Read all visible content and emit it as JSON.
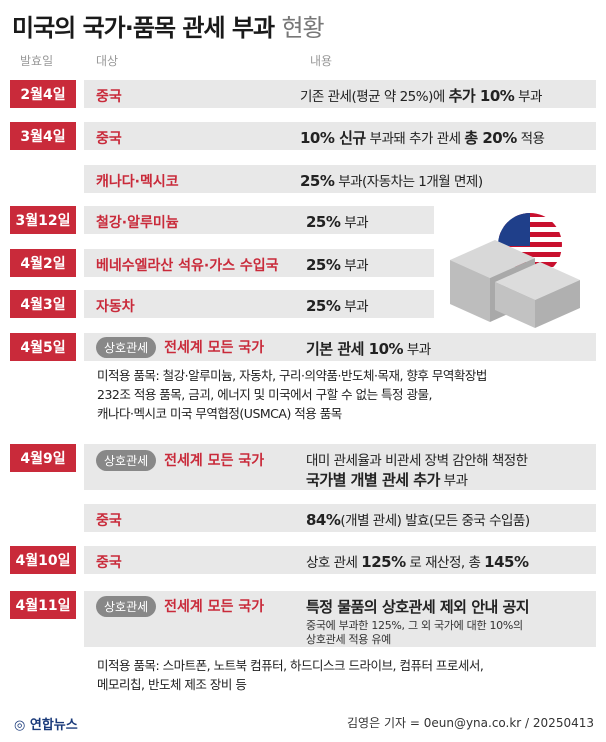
{
  "title": {
    "main": "미국의 국가·품목 관세 부과",
    "sub": "현황"
  },
  "headers": {
    "date": "발효일",
    "target": "대상",
    "content": "내용"
  },
  "rows": [
    {
      "date": "2월4일",
      "target": "중국",
      "content_pre": "기존 관세(평균 약 25%)에 ",
      "content_bold": "추가 10%",
      "content_post": " 부과"
    },
    {
      "date": "3월4일",
      "target": "중국",
      "content_bold": "10% 신규",
      "content_mid": " 부과돼 추가 관세 ",
      "content_bold2": "총 20%",
      "content_post": " 적용"
    },
    {
      "date": "",
      "target": "캐나다·멕시코",
      "content_bold": "25%",
      "content_post": " 부과(자동차는 1개월 면제)"
    },
    {
      "date": "3월12일",
      "target": "철강·알루미늄",
      "content_bold": "25%",
      "content_post": " 부과"
    },
    {
      "date": "4월2일",
      "target": "베네수엘라산 석유·가스 수입국",
      "content_bold": "25%",
      "content_post": " 부과"
    },
    {
      "date": "4월3일",
      "target": "자동차",
      "content_bold": "25%",
      "content_post": " 부과"
    },
    {
      "date": "4월5일",
      "pill": "상호관세",
      "target": "전세계 모든 국가",
      "content_bold": "기본 관세 10%",
      "content_post": " 부과",
      "detail": [
        "미적용 품목: 철강·알루미늄, 자동차, 구리·의약품·반도체·목재, 향후 무역확장법",
        "232조 적용 품목, 금괴, 에너지 및 미국에서 구할 수 없는 특정 광물,",
        "캐나다·멕시코 미국 무역협정(USMCA) 적용 품목"
      ]
    },
    {
      "date": "4월9일",
      "pill": "상호관세",
      "target": "전세계 모든 국가",
      "content_line1": "대미 관세율과 비관세 장벽 감안해 책정한",
      "content_bold": "국가별 개별 관세 추가",
      "content_post": " 부과"
    },
    {
      "date": "",
      "target": "중국",
      "content_bold": "84%",
      "content_post": "(개별 관세) 발효(모든 중국 수입품)"
    },
    {
      "date": "4월10일",
      "target": "중국",
      "content_pre": "상호 관세 ",
      "content_bold": "125%",
      "content_mid": " 로 재산정, 총 ",
      "content_bold2": "145%"
    },
    {
      "date": "4월11일",
      "pill": "상호관세",
      "target": "전세계 모든 국가",
      "content_bold": "특정 물품의 상호관세 제외 안내 공지",
      "note": [
        "중국에 부과한 125%, 그 외 국가에 대한 10%의",
        "상호관세 적용 유예"
      ],
      "detail": [
        "미적용 품목: 스마트폰, 노트북 컴퓨터, 하드디스크 드라이브, 컴퓨터 프로세서,",
        "메모리칩, 반도체 제조 장비 등"
      ]
    }
  ],
  "footer": {
    "logo": "연합뉴스",
    "credit": "김영은 기자 = 0eun@yna.co.kr / 20250413"
  },
  "colors": {
    "accent": "#c92a3a",
    "band": "#e8e8e8",
    "pill": "#888888"
  }
}
